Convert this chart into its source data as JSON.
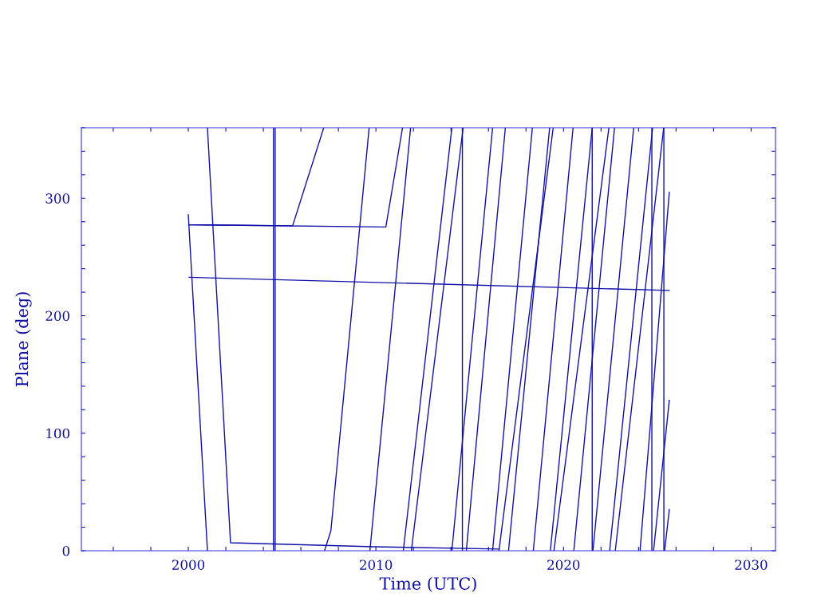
{
  "chart_data": {
    "type": "line",
    "xlabel": "Time (UTC)",
    "ylabel": "Plane (deg)",
    "xlim": [
      1994.3,
      2031.3
    ],
    "ylim": [
      0,
      360
    ],
    "xticks": [
      {
        "value": 1996,
        "label": null
      },
      {
        "value": 1998,
        "label": null
      },
      2000,
      {
        "value": 2002,
        "label": null
      },
      {
        "value": 2004,
        "label": null
      },
      {
        "value": 2006,
        "label": null
      },
      {
        "value": 2008,
        "label": null
      },
      2010,
      {
        "value": 2012,
        "label": null
      },
      {
        "value": 2014,
        "label": null
      },
      {
        "value": 2016,
        "label": null
      },
      {
        "value": 2018,
        "label": null
      },
      2020,
      {
        "value": 2022,
        "label": null
      },
      {
        "value": 2024,
        "label": null
      },
      {
        "value": 2026,
        "label": null
      },
      {
        "value": 2028,
        "label": null
      },
      2030
    ],
    "yticks": [
      0,
      {
        "value": 20,
        "label": null
      },
      {
        "value": 40,
        "label": null
      },
      {
        "value": 60,
        "label": null
      },
      {
        "value": 80,
        "label": null
      },
      100,
      {
        "value": 120,
        "label": null
      },
      {
        "value": 140,
        "label": null
      },
      {
        "value": 160,
        "label": null
      },
      {
        "value": 180,
        "label": null
      },
      200,
      {
        "value": 220,
        "label": null
      },
      {
        "value": 240,
        "label": null
      },
      {
        "value": 260,
        "label": null
      },
      {
        "value": 280,
        "label": null
      },
      300,
      {
        "value": 320,
        "label": null
      },
      {
        "value": 340,
        "label": null
      },
      {
        "value": 360,
        "label": null
      }
    ],
    "series": [
      {
        "color": "#1010a8",
        "x": [
          2000.0,
          2001.02
        ],
        "values": [
          286,
          0
        ]
      },
      {
        "color": "#1010a8",
        "x": [
          2001.02,
          2002.25,
          2009.9,
          2016.56
        ],
        "values": [
          360,
          6.8,
          3.4,
          1.4
        ]
      },
      {
        "color": "#1010a8",
        "x": [
          2000.04,
          2005.56,
          2007.22
        ],
        "values": [
          277.4,
          276.5,
          360
        ]
      },
      {
        "color": "#1010a8",
        "x": [
          2000.04,
          2010.53,
          2011.42
        ],
        "values": [
          277.4,
          275.5,
          360
        ]
      },
      {
        "color": "#1010a8",
        "x": [
          2000.04,
          2025.64
        ],
        "values": [
          232.7,
          221.5
        ]
      },
      {
        "color": "#1010a8",
        "x": [
          2004.54,
          2004.54
        ],
        "values": [
          0,
          360
        ]
      },
      {
        "color": "#1010a8",
        "x": [
          2004.63,
          2004.63
        ],
        "values": [
          0,
          360
        ]
      },
      {
        "color": "#1010a8",
        "x": [
          2007.26,
          2007.6,
          2009.64
        ],
        "values": [
          0,
          17,
          360
        ]
      },
      {
        "color": "#1010a8",
        "x": [
          2009.68,
          2011.85
        ],
        "values": [
          0,
          360
        ]
      },
      {
        "color": "#1010a8",
        "x": [
          2011.46,
          2014.05
        ],
        "values": [
          0,
          360
        ]
      },
      {
        "color": "#1010a8",
        "x": [
          2011.89,
          2014.65
        ],
        "values": [
          0,
          360
        ]
      },
      {
        "color": "#1010a8",
        "x": [
          2014.61,
          2014.61
        ],
        "values": [
          0,
          360
        ]
      },
      {
        "color": "#1010a8",
        "x": [
          2014.05,
          2016.22
        ],
        "values": [
          0,
          360
        ]
      },
      {
        "color": "#1010a8",
        "x": [
          2014.82,
          2016.9
        ],
        "values": [
          0,
          360
        ]
      },
      {
        "color": "#1010a8",
        "x": [
          2016.22,
          2018.34
        ],
        "values": [
          0,
          360
        ]
      },
      {
        "color": "#1010a8",
        "x": [
          2016.56,
          2019.45
        ],
        "values": [
          0,
          360
        ]
      },
      {
        "color": "#1010a8",
        "x": [
          2017.07,
          2019.26
        ],
        "values": [
          0,
          360
        ]
      },
      {
        "color": "#1010a8",
        "x": [
          2018.39,
          2020.51
        ],
        "values": [
          0,
          360
        ]
      },
      {
        "color": "#1010a8",
        "x": [
          2019.3,
          2021.53
        ],
        "values": [
          0,
          360
        ]
      },
      {
        "color": "#1010a8",
        "x": [
          2019.49,
          2022.42
        ],
        "values": [
          0,
          360
        ]
      },
      {
        "color": "#1010a8",
        "x": [
          2020.55,
          2022.72
        ],
        "values": [
          0,
          360
        ]
      },
      {
        "color": "#1010a8",
        "x": [
          2021.53,
          2021.53
        ],
        "values": [
          0,
          360
        ]
      },
      {
        "color": "#1010a8",
        "x": [
          2021.57,
          2023.74
        ],
        "values": [
          0,
          360
        ]
      },
      {
        "color": "#1010a8",
        "x": [
          2022.46,
          2024.75
        ],
        "values": [
          0,
          360
        ]
      },
      {
        "color": "#1010a8",
        "x": [
          2022.76,
          2025.34
        ],
        "values": [
          0,
          360
        ]
      },
      {
        "color": "#1010a8",
        "x": [
          2024.08,
          2025.64
        ],
        "values": [
          0,
          305
        ]
      },
      {
        "color": "#1010a8",
        "x": [
          2024.71,
          2024.71
        ],
        "values": [
          0,
          360
        ]
      },
      {
        "color": "#1010a8",
        "x": [
          2024.8,
          2025.64
        ],
        "values": [
          0,
          128
        ]
      },
      {
        "color": "#1010a8",
        "x": [
          2025.39,
          2025.64
        ],
        "values": [
          0,
          35
        ]
      },
      {
        "color": "#1010a8",
        "x": [
          2025.35,
          2025.35
        ],
        "values": [
          0,
          360
        ]
      }
    ]
  }
}
